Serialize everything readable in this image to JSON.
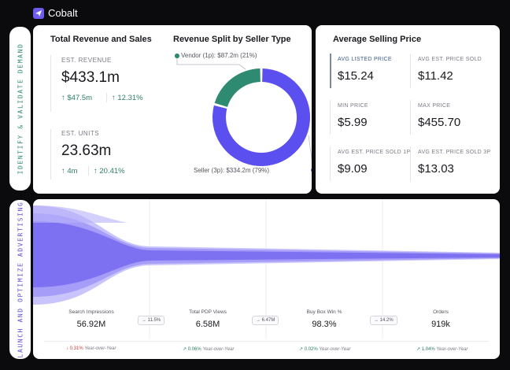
{
  "app": {
    "name": "Cobalt",
    "logo_icon": "send-icon",
    "accent": "#6d5cf0"
  },
  "side_tabs": [
    {
      "label": "IDENTIFY & VALIDATE DEMAND",
      "color": "#2f8a72"
    },
    {
      "label": "LAUNCH AND OPTIMIZE ADVERTISING",
      "color": "#5c4fd8"
    }
  ],
  "revenue_card": {
    "title": "Total Revenue and Sales",
    "revenue": {
      "label": "EST. REVENUE",
      "value": "$433.1m",
      "delta_abs": "$47.5m",
      "delta_pct": "12.31%"
    },
    "units": {
      "label": "EST. UNITS",
      "value": "23.63m",
      "delta_abs": "4m",
      "delta_pct": "20.41%"
    }
  },
  "split_card": {
    "title": "Revenue Split by Seller Type",
    "vendor_label": "Vendor (1p): $87.2m (21%)",
    "seller_label": "Seller (3p): $334.2m (79%)"
  },
  "chart_data": {
    "type": "pie",
    "title": "Revenue Split by Seller Type",
    "slices": [
      {
        "name": "Vendor (1p)",
        "value": 87.2,
        "percent": 21,
        "color": "#2f8a72"
      },
      {
        "name": "Seller (3p)",
        "value": 334.2,
        "percent": 79,
        "color": "#5b4ff0"
      }
    ],
    "units": "$m"
  },
  "asp_card": {
    "title": "Average Selling Price",
    "cells": [
      {
        "label": "AVG LISTED PRICE",
        "value": "$15.24"
      },
      {
        "label": "AVG EST. PRICE SOLD",
        "value": "$11.42"
      },
      {
        "label": "MIN PRICE",
        "value": "$5.99"
      },
      {
        "label": "MAX PRICE",
        "value": "$455.70"
      },
      {
        "label": "AVG EST. PRICE SOLD 1P",
        "value": "$9.09"
      },
      {
        "label": "AVG EST. PRICE SOLD 3P",
        "value": "$13.03"
      }
    ]
  },
  "funnel": {
    "stages": [
      {
        "label": "Search Impressions",
        "value": "56.92M",
        "yoy_dir": "↓",
        "yoy": "0.31%",
        "yoy_positive": false
      },
      {
        "label": "Total PDP Views",
        "value": "6.58M",
        "yoy_dir": "↗",
        "yoy": "0.06%",
        "yoy_positive": true
      },
      {
        "label": "Buy Box Win %",
        "value": "98.3%",
        "yoy_dir": "↗",
        "yoy": "0.02%",
        "yoy_positive": true
      },
      {
        "label": "Orders",
        "value": "919k",
        "yoy_dir": "↗",
        "yoy": "1.04%",
        "yoy_positive": true
      }
    ],
    "conversions": [
      "11.5%",
      "6.47M",
      "14.2%"
    ],
    "yoy_suffix": "Year-over-Year"
  }
}
